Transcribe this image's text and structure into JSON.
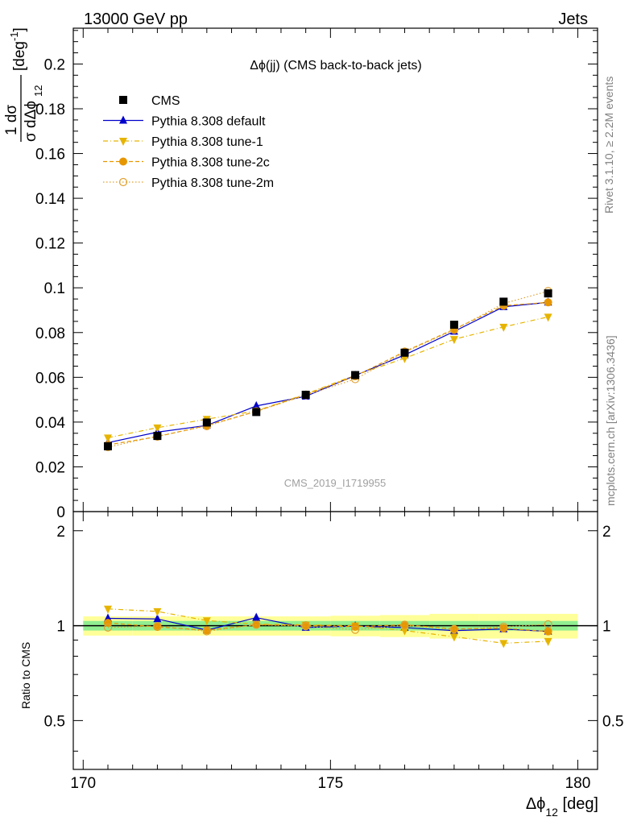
{
  "header": {
    "left": "13000 GeV pp",
    "right": "Jets"
  },
  "side_labels": {
    "rivet": "Rivet 3.1.10, ≥ 2.2M events",
    "mcplots": "mcplots.cern.ch [arXiv:1306.3436]"
  },
  "watermark": "CMS_2019_I1719955",
  "ratio_ylabel": "Ratio to CMS",
  "colors": {
    "cms": "#000000",
    "default": "#0000cc",
    "tune1": "#e6b400",
    "tune2c": "#e69600",
    "tune2m": "#e0a030",
    "band_inner": "#90ee90",
    "band_outer": "#ffff99"
  },
  "chart_data": {
    "type": "scatter",
    "title": "Δϕ(jj) (CMS back-to-back jets)",
    "xlabel_main": "Δϕ",
    "xlabel_sub": "12",
    "xlabel_unit": " [deg]",
    "ylabel": {
      "numerator": "1  dσ",
      "denominator": "σ dΔϕ",
      "sub": "12",
      "unit": "[deg",
      "unit_sup": "-1",
      "unit_close": "]"
    },
    "xlim": [
      169.8,
      180.4
    ],
    "ylim": [
      0,
      0.216
    ],
    "ratio_ylim": [
      0.35,
      2.3
    ],
    "x_ticks": [
      170,
      175,
      180
    ],
    "x_tick_labels": [
      "170",
      "175",
      "180"
    ],
    "y_ticks": [
      0,
      0.02,
      0.04,
      0.06,
      0.08,
      0.1,
      0.12,
      0.14,
      0.16,
      0.18,
      0.2
    ],
    "y_tick_labels": [
      "0",
      "0.02",
      "0.04",
      "0.06",
      "0.08",
      "0.1",
      "0.12",
      "0.14",
      "0.16",
      "0.18",
      "0.2"
    ],
    "ratio_ticks": [
      0.5,
      1,
      2
    ],
    "ratio_tick_labels": [
      "0.5",
      "1",
      "2"
    ],
    "x": [
      170.5,
      171.5,
      172.5,
      173.5,
      174.5,
      175.5,
      176.5,
      177.5,
      178.5,
      179.4
    ],
    "series": [
      {
        "name": "CMS",
        "key": "cms",
        "marker": "square",
        "line": "none",
        "values": [
          0.0292,
          0.0338,
          0.0398,
          0.0445,
          0.0522,
          0.061,
          0.071,
          0.0835,
          0.0938,
          0.0975
        ]
      },
      {
        "name": "Pythia 8.308 default",
        "key": "default",
        "marker": "triangle-up",
        "line": "solid",
        "values": [
          0.0308,
          0.0355,
          0.0385,
          0.0472,
          0.0515,
          0.0608,
          0.07,
          0.0805,
          0.0915,
          0.0935
        ]
      },
      {
        "name": "Pythia 8.308 tune-1",
        "key": "tune1",
        "marker": "triangle-down",
        "line": "dashdot",
        "values": [
          0.033,
          0.0375,
          0.0413,
          0.045,
          0.0525,
          0.061,
          0.0685,
          0.077,
          0.0825,
          0.087
        ]
      },
      {
        "name": "Pythia 8.308 tune-2c",
        "key": "tune2c",
        "marker": "circle-filled",
        "line": "dashed",
        "values": [
          0.0298,
          0.0335,
          0.0385,
          0.0448,
          0.0523,
          0.0605,
          0.0715,
          0.0815,
          0.092,
          0.0935
        ]
      },
      {
        "name": "Pythia 8.308 tune-2m",
        "key": "tune2m",
        "marker": "circle-open",
        "line": "dotted",
        "values": [
          0.0288,
          0.0337,
          0.0382,
          0.0448,
          0.052,
          0.0592,
          0.0712,
          0.0812,
          0.093,
          0.0985
        ]
      }
    ],
    "ratio_band": {
      "inner": [
        0.035,
        0.035,
        0.035,
        0.035,
        0.035,
        0.035,
        0.035,
        0.035,
        0.035,
        0.035
      ],
      "outer": [
        0.07,
        0.07,
        0.07,
        0.07,
        0.07,
        0.075,
        0.08,
        0.09,
        0.09,
        0.09
      ]
    },
    "ratio_reference": 1
  }
}
